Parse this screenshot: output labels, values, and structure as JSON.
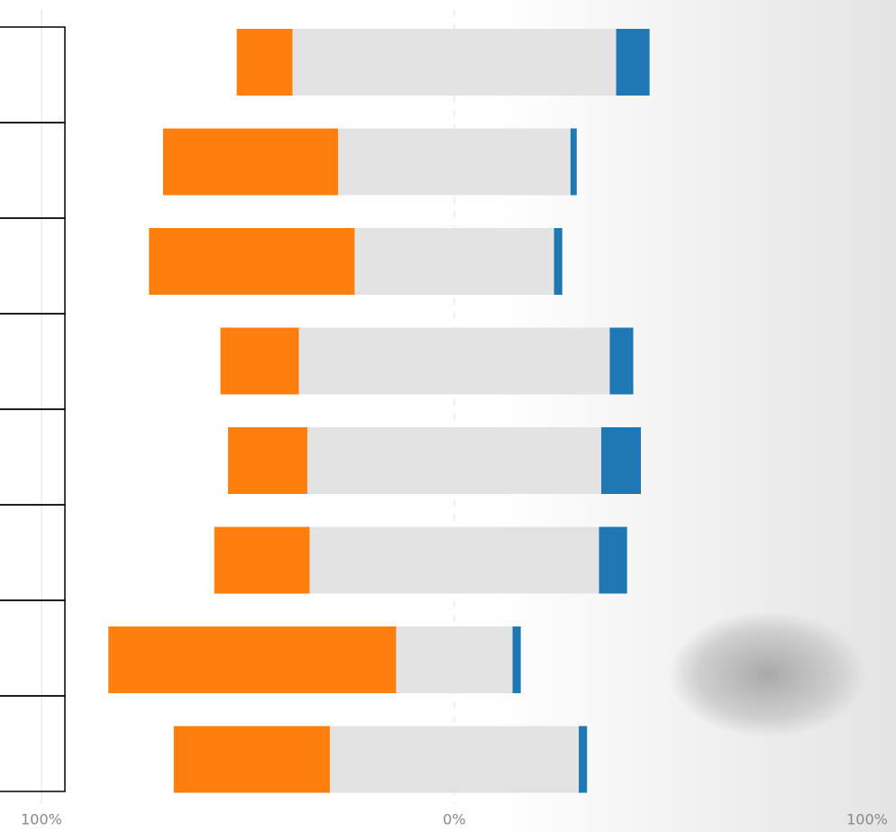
{
  "chart_data": {
    "type": "diverging-bar",
    "categories": [
      null,
      null,
      null,
      null,
      null,
      null,
      null,
      null
    ],
    "series": [
      {
        "color": "#ff7f0e",
        "values": [
          13.5,
          42.4,
          49.8,
          19.0,
          19.2,
          23.1,
          69.7,
          37.8
        ]
      },
      {
        "color": "#e3e3e3",
        "values": [
          78.4,
          56.3,
          48.3,
          75.3,
          71.2,
          70.1,
          28.2,
          60.3
        ]
      },
      {
        "color": "#1f77b4",
        "values": [
          8.1,
          1.5,
          2.0,
          5.7,
          9.6,
          6.8,
          2.0,
          2.0
        ]
      }
    ],
    "xlim": [
      -100,
      100
    ],
    "xticks": [
      {
        "value": -100,
        "label": "100%"
      },
      {
        "value": 0,
        "label": "0%"
      },
      {
        "value": 100,
        "label": "100%"
      }
    ],
    "grid": true
  }
}
